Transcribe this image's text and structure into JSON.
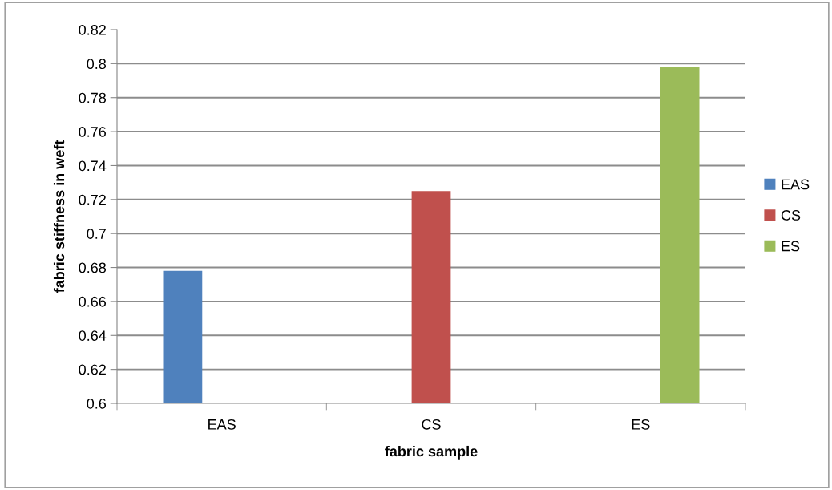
{
  "chart_data": {
    "type": "bar",
    "xlabel": "fabric sample",
    "ylabel": "fabric stiffness in weft",
    "categories": [
      "EAS",
      "CS",
      "ES"
    ],
    "series": [
      {
        "name": "EAS",
        "color": "#4f81bd",
        "values": [
          0.678,
          null,
          null
        ]
      },
      {
        "name": "CS",
        "color": "#c0504d",
        "values": [
          null,
          0.725,
          null
        ]
      },
      {
        "name": "ES",
        "color": "#9bbb59",
        "values": [
          null,
          null,
          0.798
        ]
      }
    ],
    "ylim": [
      0.6,
      0.82
    ],
    "yticks": [
      0.6,
      0.62,
      0.64,
      0.66,
      0.68,
      0.7,
      0.72,
      0.74,
      0.76,
      0.78,
      0.8,
      0.82
    ],
    "grid": "y",
    "legend": "right"
  }
}
